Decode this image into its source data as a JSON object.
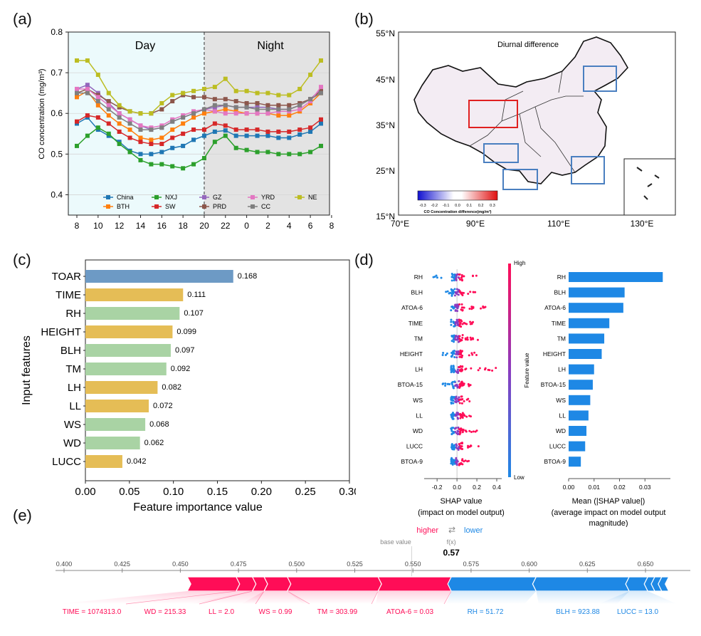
{
  "panel_labels": {
    "a": "(a)",
    "b": "(b)",
    "c": "(c)",
    "d": "(d)",
    "e": "(e)"
  },
  "chart_data": [
    {
      "id": "a",
      "type": "line",
      "annotations": {
        "day": "Day",
        "night": "Night"
      },
      "ylabel": "CO concentration (mg/m³)",
      "ylim": [
        0.35,
        0.8
      ],
      "yticks": [
        "0.4",
        "0.5",
        "0.6",
        "0.7",
        "0.8"
      ],
      "x_tick_labels": [
        "8",
        "10",
        "12",
        "14",
        "16",
        "18",
        "20",
        "22",
        "0",
        "2",
        "4",
        "6",
        "8"
      ],
      "series": [
        {
          "name": "China",
          "color": "#1f77b4",
          "values": [
            0.575,
            0.59,
            0.56,
            0.545,
            0.53,
            0.508,
            0.5,
            0.5,
            0.505,
            0.515,
            0.52,
            0.535,
            0.545,
            0.555,
            0.558,
            0.545,
            0.545,
            0.545,
            0.545,
            0.54,
            0.54,
            0.548,
            0.555,
            0.575
          ]
        },
        {
          "name": "BTH",
          "color": "#ff7f0e",
          "values": [
            0.64,
            0.655,
            0.62,
            0.595,
            0.575,
            0.56,
            0.54,
            0.535,
            0.54,
            0.56,
            0.575,
            0.59,
            0.6,
            0.605,
            0.61,
            0.605,
            0.6,
            0.6,
            0.6,
            0.595,
            0.595,
            0.605,
            0.625,
            0.65
          ]
        },
        {
          "name": "NXJ",
          "color": "#2ca02c",
          "values": [
            0.52,
            0.545,
            0.565,
            0.55,
            0.525,
            0.505,
            0.485,
            0.475,
            0.475,
            0.47,
            0.465,
            0.475,
            0.49,
            0.53,
            0.545,
            0.515,
            0.51,
            0.505,
            0.505,
            0.5,
            0.5,
            0.5,
            0.505,
            0.52
          ]
        },
        {
          "name": "SW",
          "color": "#d62728",
          "values": [
            0.58,
            0.595,
            0.59,
            0.575,
            0.555,
            0.54,
            0.53,
            0.525,
            0.525,
            0.54,
            0.55,
            0.56,
            0.56,
            0.575,
            0.57,
            0.56,
            0.56,
            0.56,
            0.555,
            0.555,
            0.555,
            0.56,
            0.565,
            0.585
          ]
        },
        {
          "name": "GZ",
          "color": "#9467bd",
          "values": [
            0.66,
            0.67,
            0.65,
            0.625,
            0.6,
            0.585,
            0.57,
            0.56,
            0.565,
            0.58,
            0.59,
            0.6,
            0.61,
            0.615,
            0.62,
            0.615,
            0.615,
            0.615,
            0.615,
            0.61,
            0.61,
            0.62,
            0.635,
            0.66
          ]
        },
        {
          "name": "PRD",
          "color": "#8c564b",
          "values": [
            0.65,
            0.66,
            0.645,
            0.63,
            0.615,
            0.605,
            0.6,
            0.6,
            0.61,
            0.63,
            0.645,
            0.64,
            0.64,
            0.635,
            0.635,
            0.63,
            0.625,
            0.625,
            0.62,
            0.62,
            0.62,
            0.625,
            0.635,
            0.655
          ]
        },
        {
          "name": "YRD",
          "color": "#e377c2",
          "values": [
            0.66,
            0.66,
            0.64,
            0.62,
            0.6,
            0.585,
            0.57,
            0.565,
            0.57,
            0.585,
            0.595,
            0.605,
            0.61,
            0.605,
            0.6,
            0.6,
            0.6,
            0.6,
            0.6,
            0.605,
            0.605,
            0.61,
            0.63,
            0.665
          ]
        },
        {
          "name": "CC",
          "color": "#7f7f7f",
          "values": [
            0.65,
            0.65,
            0.63,
            0.61,
            0.59,
            0.575,
            0.56,
            0.56,
            0.565,
            0.58,
            0.59,
            0.6,
            0.61,
            0.62,
            0.62,
            0.615,
            0.615,
            0.61,
            0.61,
            0.61,
            0.61,
            0.62,
            0.635,
            0.65
          ]
        },
        {
          "name": "NE",
          "color": "#bcbd22",
          "values": [
            0.73,
            0.73,
            0.695,
            0.65,
            0.62,
            0.605,
            0.6,
            0.6,
            0.625,
            0.645,
            0.65,
            0.655,
            0.66,
            0.665,
            0.685,
            0.655,
            0.655,
            0.65,
            0.65,
            0.645,
            0.645,
            0.66,
            0.695,
            0.73
          ]
        }
      ]
    },
    {
      "id": "b",
      "type": "heatmap",
      "title": "Diurnal difference",
      "lat_labels": [
        "55°N",
        "45°N",
        "35°N",
        "25°N",
        "15°N"
      ],
      "lon_labels": [
        "70°E",
        "90°E",
        "110°E",
        "130°E"
      ],
      "colorbar_ticks": [
        "-0.3",
        "-0.2",
        "-0.1",
        "0.0",
        "0.1",
        "0.2",
        "0.3"
      ],
      "colorbar_label": "CO Concentration difference(mg/m³)"
    },
    {
      "id": "c",
      "type": "bar",
      "orientation": "horizontal",
      "xlabel": "Feature importance value",
      "ylabel": "Input features",
      "xlim": [
        0,
        0.3
      ],
      "xticks": [
        "0.00",
        "0.05",
        "0.10",
        "0.15",
        "0.20",
        "0.25",
        "0.30"
      ],
      "categories": [
        "TOAR",
        "TIME",
        "RH",
        "HEIGHT",
        "BLH",
        "TM",
        "LH",
        "LL",
        "WS",
        "WD",
        "LUCC"
      ],
      "values": [
        0.168,
        0.111,
        0.107,
        0.099,
        0.097,
        0.092,
        0.082,
        0.072,
        0.068,
        0.062,
        0.042
      ],
      "value_labels": [
        "0.168",
        "0.111",
        "0.107",
        "0.099",
        "0.097",
        "0.092",
        "0.082",
        "0.072",
        "0.068",
        "0.062",
        "0.042"
      ],
      "bar_colors": [
        "#6d9ac5",
        "#e5bd56",
        "#a9d3a4",
        "#e5bd56",
        "#a9d3a4",
        "#a9d3a4",
        "#e5bd56",
        "#e5bd56",
        "#a9d3a4",
        "#a9d3a4",
        "#e5bd56"
      ]
    },
    {
      "id": "d-left",
      "type": "scatter",
      "features": [
        "RH",
        "BLH",
        "ATOA-6",
        "TIME",
        "TM",
        "HEIGHT",
        "LH",
        "BTOA-15",
        "WS",
        "LL",
        "WD",
        "LUCC",
        "BTOA-9"
      ],
      "xticks": [
        "-0.2",
        "0.0",
        "0.2",
        "0.4"
      ],
      "xlim": [
        -0.33,
        0.45
      ],
      "xlabel_line1": "SHAP value",
      "xlabel_line2": "(impact on model output)",
      "colorbar_high": "High",
      "colorbar_low": "Low",
      "colorbar_label": "Feature value",
      "spread": [
        {
          "min": -0.28,
          "max": 0.25
        },
        {
          "min": -0.12,
          "max": 0.2
        },
        {
          "min": -0.05,
          "max": 0.38
        },
        {
          "min": -0.06,
          "max": 0.22
        },
        {
          "min": -0.06,
          "max": 0.23
        },
        {
          "min": -0.15,
          "max": 0.22
        },
        {
          "min": -0.1,
          "max": 0.4
        },
        {
          "min": -0.15,
          "max": 0.14
        },
        {
          "min": -0.06,
          "max": 0.14
        },
        {
          "min": -0.06,
          "max": 0.14
        },
        {
          "min": -0.06,
          "max": 0.2
        },
        {
          "min": -0.06,
          "max": 0.22
        },
        {
          "min": -0.05,
          "max": 0.12
        }
      ]
    },
    {
      "id": "d-right",
      "type": "bar",
      "orientation": "horizontal",
      "categories": [
        "RH",
        "BLH",
        "ATOA-6",
        "TIME",
        "TM",
        "HEIGHT",
        "LH",
        "BTOA-15",
        "WS",
        "LL",
        "WD",
        "LUCC",
        "BTOA-9"
      ],
      "values": [
        0.037,
        0.022,
        0.0215,
        0.016,
        0.014,
        0.013,
        0.01,
        0.0095,
        0.0085,
        0.0078,
        0.007,
        0.0065,
        0.0048
      ],
      "xticks": [
        "0.00",
        "0.01",
        "0.02",
        "0.03"
      ],
      "xlim": [
        0,
        0.04
      ],
      "xlabel_line1": "Mean (|SHAP value|)",
      "xlabel_line2": "(average impact on model output",
      "xlabel_line3": "magnitude)",
      "bar_color": "#1e88e5"
    },
    {
      "id": "e",
      "type": "bar",
      "subtype": "force-plot",
      "legend_higher": "higher",
      "legend_arrows": "⇄",
      "legend_lower": "lower",
      "base_value_label": "base value",
      "fx_label": "f(x)",
      "fx_value": "0.57",
      "xticks": [
        "0.400",
        "0.425",
        "0.450",
        "0.475",
        "0.500",
        "0.525",
        "0.550",
        "0.575",
        "0.600",
        "0.625",
        "0.650"
      ],
      "xlim": [
        0.395,
        0.665
      ],
      "fx": 0.5665,
      "positive_color": "#ff0d57",
      "negative_color": "#1e88e5",
      "positive": [
        {
          "label": "TIME = 1074313.0",
          "from": 0.453,
          "to": 0.474
        },
        {
          "label": "WD = 215.33",
          "from": 0.474,
          "to": 0.481
        },
        {
          "label": "LL = 2.0",
          "from": 0.481,
          "to": 0.486
        },
        {
          "label": "WS = 0.99",
          "from": 0.486,
          "to": 0.496
        },
        {
          "label": "TM = 303.99",
          "from": 0.496,
          "to": 0.535
        },
        {
          "label": "ATOA-6 = 0.03",
          "from": 0.535,
          "to": 0.5665
        }
      ],
      "negative": [
        {
          "label": "RH = 51.72",
          "from": 0.5665,
          "to": 0.603
        },
        {
          "label": "BLH = 923.88",
          "from": 0.603,
          "to": 0.643
        },
        {
          "label": "LUCC = 13.0",
          "from": 0.643,
          "to": 0.651
        },
        {
          "label": "",
          "from": 0.651,
          "to": 0.654
        },
        {
          "label": "",
          "from": 0.654,
          "to": 0.657
        },
        {
          "label": "",
          "from": 0.657,
          "to": 0.66
        }
      ]
    }
  ]
}
